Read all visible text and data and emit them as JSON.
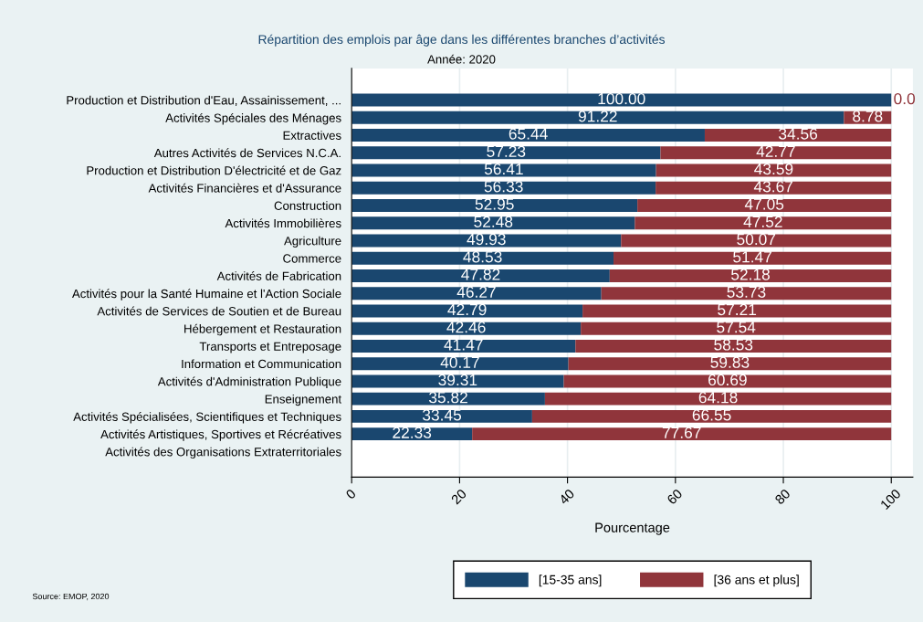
{
  "chart_data": {
    "type": "bar",
    "orientation": "horizontal",
    "stacked": true,
    "title": "Répartition des emplois par âge dans les différentes branches d’activités",
    "subtitle": "Année: 2020",
    "xlabel": "Pourcentage",
    "categories": [
      "Production et Distribution d'Eau, Assainissement, ...",
      "Activités Spéciales des Ménages",
      "Extractives",
      "Autres Activités de Services N.C.A.",
      "Production et Distribution D'électricité et de Gaz",
      "Activités Financières et d'Assurance",
      "Construction",
      "Activités Immobilières",
      "Agriculture",
      "Commerce",
      "Activités de Fabrication",
      "Activités pour la Santé Humaine et l'Action Sociale",
      "Activités de Services de Soutien et de Bureau",
      "Hébergement et Restauration",
      "Transports et Entreposage",
      "Information et Communication",
      "Activités d'Administration Publique",
      "Enseignement",
      "Activités Spécialisées, Scientifiques et Techniques",
      "Activités Artistiques, Sportives et Récréatives",
      "Activités des Organisations Extraterritoriales"
    ],
    "series": [
      {
        "name": "[15-35 ans]",
        "color": "#1a476f",
        "values": [
          100.0,
          91.22,
          65.44,
          57.23,
          56.41,
          56.33,
          52.95,
          52.48,
          49.93,
          48.53,
          47.82,
          46.27,
          42.79,
          42.46,
          41.47,
          40.17,
          39.31,
          35.82,
          33.45,
          22.33,
          null
        ],
        "value_labels": [
          "100.00",
          "91.22",
          "65.44",
          "57.23",
          "56.41",
          "56.33",
          "52.95",
          "52.48",
          "49.93",
          "48.53",
          "47.82",
          "46.27",
          "42.79",
          "42.46",
          "41.47",
          "40.17",
          "39.31",
          "35.82",
          "33.45",
          "22.33",
          null
        ]
      },
      {
        "name": "[36 ans et plus]",
        "color": "#90353b",
        "values": [
          0.0,
          8.78,
          34.56,
          42.77,
          43.59,
          43.67,
          47.05,
          47.52,
          50.07,
          51.47,
          52.18,
          53.73,
          57.21,
          57.54,
          58.53,
          59.83,
          60.69,
          64.18,
          66.55,
          77.67,
          null
        ],
        "value_labels": [
          "0.0",
          "8.78",
          "34.56",
          "42.77",
          "43.59",
          "43.67",
          "47.05",
          "47.52",
          "50.07",
          "51.47",
          "52.18",
          "53.73",
          "57.21",
          "57.54",
          "58.53",
          "59.83",
          "60.69",
          "64.18",
          "66.55",
          "77.67",
          null
        ]
      }
    ],
    "xlim": [
      0,
      104
    ],
    "xticks": [
      0,
      20,
      40,
      60,
      80,
      100
    ],
    "grid": "x",
    "legend": "bottom",
    "annotations": [
      "Source: EMOP, 2020"
    ]
  }
}
